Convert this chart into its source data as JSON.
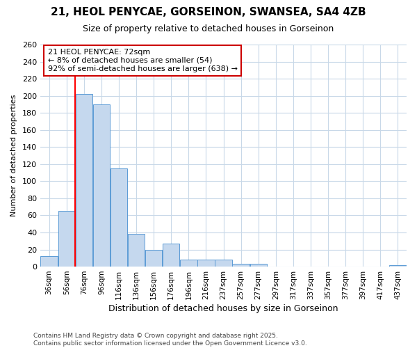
{
  "title_line1": "21, HEOL PENYCAE, GORSEINON, SWANSEA, SA4 4ZB",
  "title_line2": "Size of property relative to detached houses in Gorseinon",
  "xlabel": "Distribution of detached houses by size in Gorseinon",
  "ylabel": "Number of detached properties",
  "categories": [
    "36sqm",
    "56sqm",
    "76sqm",
    "96sqm",
    "116sqm",
    "136sqm",
    "156sqm",
    "176sqm",
    "196sqm",
    "216sqm",
    "237sqm",
    "257sqm",
    "277sqm",
    "297sqm",
    "317sqm",
    "337sqm",
    "357sqm",
    "377sqm",
    "397sqm",
    "417sqm",
    "437sqm"
  ],
  "values": [
    12,
    65,
    202,
    190,
    115,
    38,
    20,
    27,
    8,
    8,
    8,
    3,
    3,
    0,
    0,
    0,
    0,
    0,
    0,
    0,
    2
  ],
  "bar_color": "#c5d8ee",
  "bar_edge_color": "#5b9bd5",
  "red_line_index": 2,
  "annotation_text": "21 HEOL PENYCAE: 72sqm\n← 8% of detached houses are smaller (54)\n92% of semi-detached houses are larger (638) →",
  "annotation_box_color": "#ffffff",
  "annotation_box_edge": "#cc0000",
  "footer": "Contains HM Land Registry data © Crown copyright and database right 2025.\nContains public sector information licensed under the Open Government Licence v3.0.",
  "ylim": [
    0,
    260
  ],
  "yticks": [
    0,
    20,
    40,
    60,
    80,
    100,
    120,
    140,
    160,
    180,
    200,
    220,
    240,
    260
  ],
  "background_color": "#ffffff",
  "grid_color": "#c8d8e8"
}
